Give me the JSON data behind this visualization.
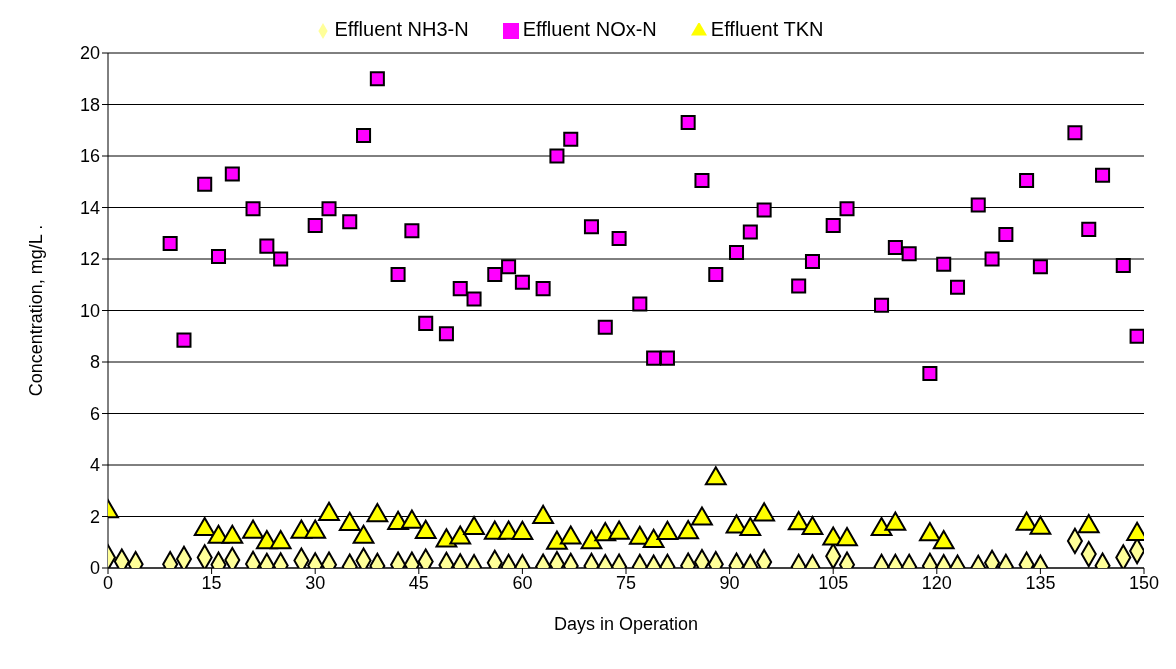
{
  "chart_data": {
    "type": "scatter",
    "xlabel": "Days in Operation",
    "ylabel": "Concentration, mg/L      .",
    "xlim": [
      0,
      150
    ],
    "xticks": [
      0,
      15,
      30,
      45,
      60,
      75,
      90,
      105,
      120,
      135,
      150
    ],
    "ylim": [
      0,
      20
    ],
    "yticks": [
      0,
      2,
      4,
      6,
      8,
      10,
      12,
      14,
      16,
      18,
      20
    ],
    "grid": "y",
    "legend": "top",
    "series": [
      {
        "name": "Effluent NH3-N",
        "color": "#ffff99",
        "marker": "diamond",
        "x": [
          0,
          2,
          4,
          9,
          11,
          14,
          16,
          18,
          21,
          23,
          25,
          28,
          30,
          32,
          35,
          37,
          39,
          42,
          44,
          46,
          49,
          51,
          53,
          56,
          58,
          60,
          63,
          65,
          67,
          70,
          72,
          74,
          77,
          79,
          81,
          84,
          86,
          88,
          91,
          93,
          95,
          100,
          102,
          105,
          107,
          112,
          114,
          116,
          119,
          121,
          123,
          126,
          128,
          130,
          133,
          135,
          140,
          142,
          144,
          147,
          149
        ],
        "values": [
          0.41,
          0.25,
          0.15,
          0.15,
          0.35,
          0.41,
          0.13,
          0.31,
          0.16,
          0.08,
          0.1,
          0.29,
          0.1,
          0.13,
          0.05,
          0.29,
          0.08,
          0.13,
          0.13,
          0.25,
          0.12,
          0.06,
          0.03,
          0.2,
          0.04,
          0.03,
          0.05,
          0.15,
          0.08,
          0.08,
          0.03,
          0.05,
          0.04,
          0.01,
          0.04,
          0.09,
          0.23,
          0.15,
          0.09,
          0.03,
          0.23,
          0.04,
          0.02,
          0.46,
          0.13,
          0.04,
          0.04,
          0.04,
          0.08,
          0.03,
          0.01,
          0.0,
          0.2,
          0.04,
          0.13,
          0.01,
          1.05,
          0.54,
          0.09,
          0.41,
          0.66
        ]
      },
      {
        "name": "Effluent NOx-N",
        "color": "#ff00ff",
        "marker": "square",
        "x": [
          9,
          11,
          14,
          16,
          18,
          21,
          23,
          25,
          30,
          32,
          35,
          37,
          39,
          42,
          44,
          46,
          49,
          51,
          53,
          56,
          58,
          60,
          63,
          65,
          67,
          70,
          72,
          74,
          77,
          79,
          81,
          84,
          86,
          88,
          91,
          93,
          95,
          100,
          102,
          105,
          107,
          112,
          114,
          116,
          119,
          121,
          123,
          126,
          128,
          130,
          133,
          135,
          140,
          142,
          144,
          147,
          149
        ],
        "values": [
          12.6,
          8.85,
          14.9,
          12.1,
          15.3,
          13.95,
          12.5,
          12.0,
          13.3,
          13.95,
          13.45,
          16.8,
          19.0,
          11.4,
          13.1,
          9.5,
          9.1,
          10.85,
          10.45,
          11.4,
          11.7,
          11.1,
          10.85,
          16.0,
          16.65,
          13.25,
          9.35,
          12.8,
          10.25,
          8.15,
          8.15,
          17.3,
          15.05,
          11.4,
          12.25,
          13.05,
          13.9,
          10.95,
          11.9,
          13.3,
          13.95,
          10.2,
          12.45,
          12.2,
          7.55,
          11.8,
          10.9,
          14.1,
          12.0,
          12.95,
          15.05,
          11.7,
          16.9,
          13.15,
          15.25,
          11.75,
          9.0
        ]
      },
      {
        "name": "Effluent TKN",
        "color": "#ffff00",
        "marker": "triangle",
        "x": [
          0,
          14,
          16,
          18,
          21,
          23,
          25,
          28,
          30,
          32,
          35,
          37,
          39,
          42,
          44,
          46,
          49,
          51,
          53,
          56,
          58,
          60,
          63,
          65,
          67,
          70,
          72,
          74,
          77,
          79,
          81,
          84,
          86,
          88,
          91,
          93,
          95,
          100,
          102,
          105,
          107,
          112,
          114,
          119,
          121,
          133,
          135,
          142,
          149
        ],
        "values": [
          2.19,
          1.5,
          1.2,
          1.2,
          1.4,
          0.99,
          0.99,
          1.4,
          1.4,
          2.09,
          1.7,
          1.2,
          2.04,
          1.74,
          1.79,
          1.39,
          1.06,
          1.17,
          1.54,
          1.36,
          1.36,
          1.35,
          1.97,
          0.97,
          1.17,
          0.99,
          1.3,
          1.36,
          1.16,
          1.04,
          1.35,
          1.38,
          1.91,
          3.47,
          1.6,
          1.5,
          2.07,
          1.73,
          1.54,
          1.13,
          1.11,
          1.5,
          1.71,
          1.3,
          0.99,
          1.71,
          1.55,
          1.61,
          1.31
        ]
      }
    ]
  }
}
